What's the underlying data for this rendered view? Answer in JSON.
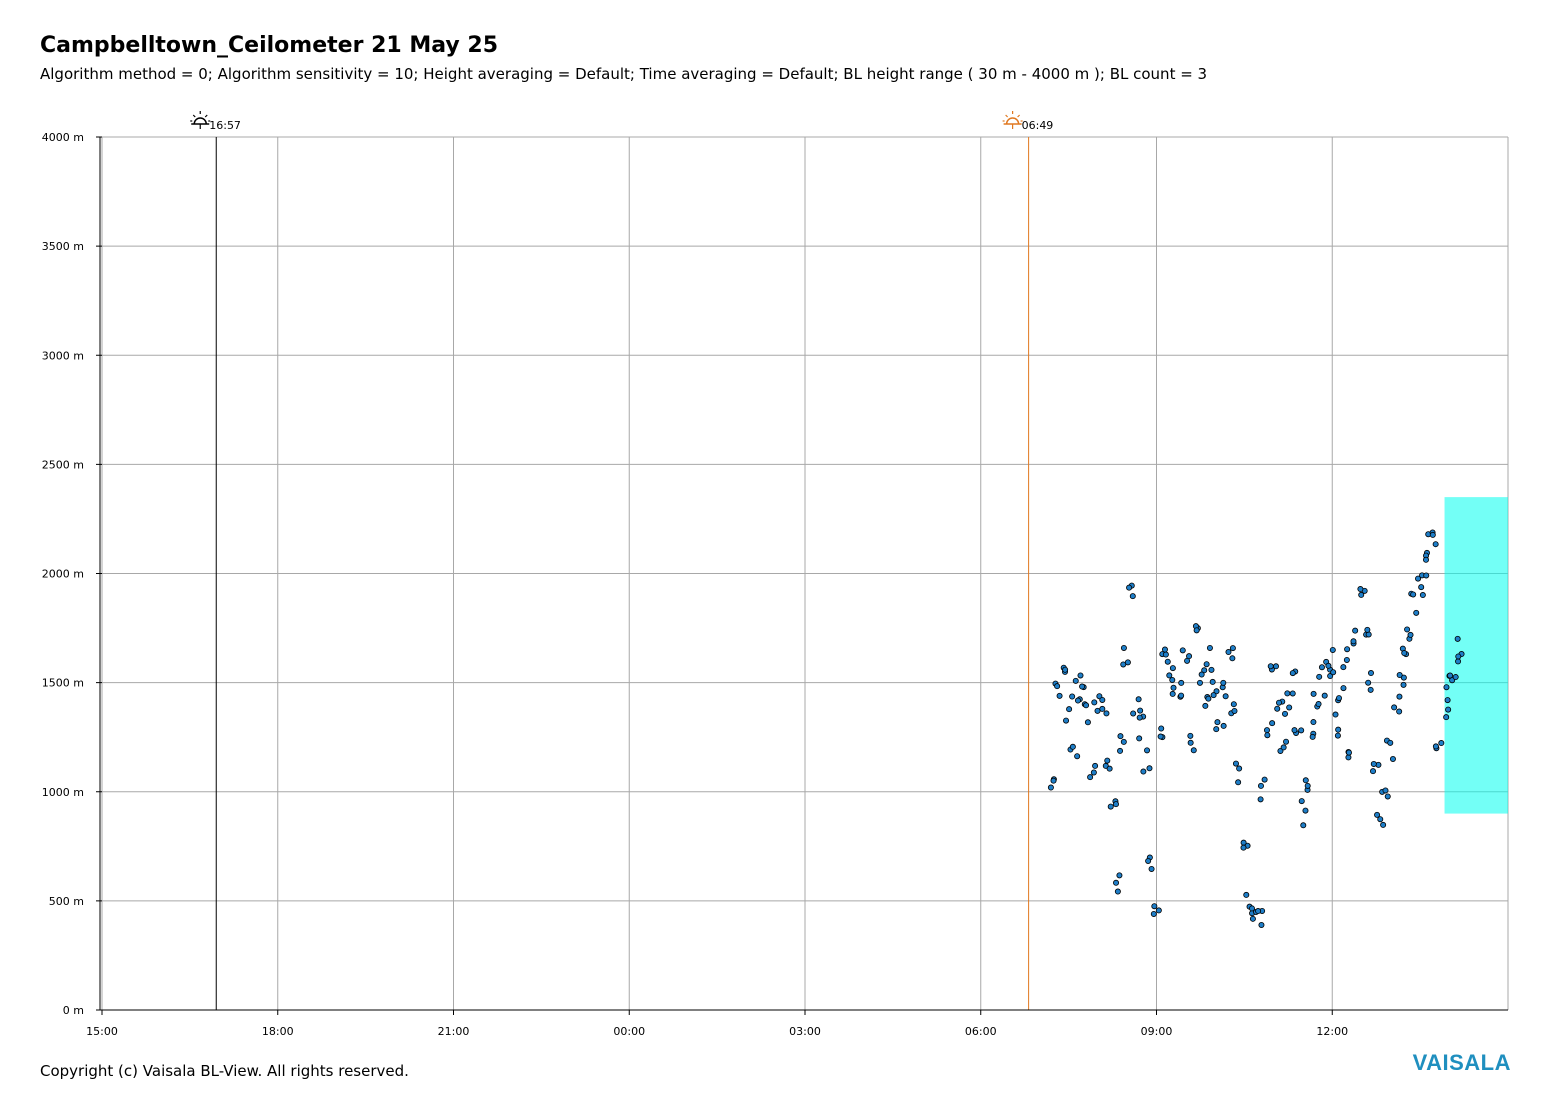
{
  "header": {
    "title": "Campbelltown_Ceilometer 21 May 25",
    "subtitle": "Algorithm method = 0; Algorithm sensitivity = 10; Height averaging = Default; Time averaging = Default; BL height range ( 30 m - 4000 m ); BL count = 3"
  },
  "footer": {
    "copyright": "Copyright (c) Vaisala BL-View. All rights reserved.",
    "brand": "VAISALA",
    "brand_color": "#1f8fbf"
  },
  "chart_data": {
    "type": "heatmap",
    "title": "Campbelltown_Ceilometer 21 May 25",
    "xlabel": "",
    "ylabel": "",
    "x_ticks": [
      "15:00",
      "18:00",
      "21:00",
      "00:00",
      "03:00",
      "06:00",
      "09:00",
      "12:00"
    ],
    "y_ticks": [
      "0 m",
      "500 m",
      "1000 m",
      "1500 m",
      "2000 m",
      "2500 m",
      "3000 m",
      "3500 m",
      "4000 m"
    ],
    "x_range_hours": [
      15.0,
      39.0
    ],
    "y_range_m": [
      0,
      4000
    ],
    "grid": true,
    "data_start_time": "07:10",
    "data_end_time": "15:00",
    "colormap": [
      "#00ffee",
      "#00e070",
      "#40ff20",
      "#ffff00",
      "#ff9900",
      "#ff0000"
    ],
    "sun_events": [
      {
        "type": "sunset",
        "label": "16:57",
        "time_hours": 16.95,
        "color": "#000000"
      },
      {
        "type": "sunrise",
        "label": "06:49",
        "time_hours": 30.817,
        "color": "#e07820"
      }
    ],
    "boundary_layer_series": {
      "name": "",
      "marker_color": "#1e7ec8",
      "points": [
        [
          "07:15",
          1050
        ],
        [
          "07:20",
          1450
        ],
        [
          "07:25",
          1600
        ],
        [
          "07:30",
          1380
        ],
        [
          "07:35",
          1200
        ],
        [
          "07:40",
          1450
        ],
        [
          "07:45",
          1500
        ],
        [
          "07:50",
          1350
        ],
        [
          "07:55",
          1100
        ],
        [
          "08:00",
          1420
        ],
        [
          "08:05",
          1380
        ],
        [
          "08:10",
          1150
        ],
        [
          "08:15",
          900
        ],
        [
          "08:20",
          600
        ],
        [
          "08:25",
          1200
        ],
        [
          "08:30",
          1600
        ],
        [
          "08:35",
          1900
        ],
        [
          "08:40",
          1400
        ],
        [
          "08:45",
          1300
        ],
        [
          "08:50",
          1150
        ],
        [
          "08:55",
          700
        ],
        [
          "09:00",
          500
        ],
        [
          "09:05",
          1300
        ],
        [
          "09:10",
          1600
        ],
        [
          "09:15",
          1550
        ],
        [
          "09:20",
          1500
        ],
        [
          "09:25",
          1450
        ],
        [
          "09:30",
          1600
        ],
        [
          "09:35",
          1200
        ],
        [
          "09:40",
          1700
        ],
        [
          "09:45",
          1550
        ],
        [
          "09:50",
          1400
        ],
        [
          "09:55",
          1600
        ],
        [
          "10:00",
          1500
        ],
        [
          "10:05",
          1300
        ],
        [
          "10:10",
          1450
        ],
        [
          "10:15",
          1650
        ],
        [
          "10:20",
          1400
        ],
        [
          "10:25",
          1100
        ],
        [
          "10:30",
          800
        ],
        [
          "10:35",
          500
        ],
        [
          "10:40",
          450
        ],
        [
          "10:45",
          400
        ],
        [
          "10:50",
          1000
        ],
        [
          "10:55",
          1300
        ],
        [
          "11:00",
          1550
        ],
        [
          "11:05",
          1400
        ],
        [
          "11:10",
          1200
        ],
        [
          "11:15",
          1400
        ],
        [
          "11:20",
          1500
        ],
        [
          "11:25",
          1300
        ],
        [
          "11:30",
          900
        ],
        [
          "11:35",
          1050
        ],
        [
          "11:40",
          1300
        ],
        [
          "11:45",
          1450
        ],
        [
          "11:50",
          1550
        ],
        [
          "11:55",
          1500
        ],
        [
          "12:00",
          1600
        ],
        [
          "12:05",
          1300
        ],
        [
          "12:10",
          1450
        ],
        [
          "12:15",
          1600
        ],
        [
          "12:20",
          1200
        ],
        [
          "12:25",
          1700
        ],
        [
          "12:30",
          1900
        ],
        [
          "12:35",
          1750
        ],
        [
          "12:40",
          1500
        ],
        [
          "12:45",
          1100
        ],
        [
          "12:50",
          900
        ],
        [
          "12:55",
          1000
        ],
        [
          "13:00",
          1200
        ],
        [
          "13:05",
          1400
        ],
        [
          "13:10",
          1500
        ],
        [
          "13:15",
          1620
        ],
        [
          "13:20",
          1750
        ],
        [
          "13:25",
          1850
        ],
        [
          "13:30",
          1950
        ],
        [
          "13:35",
          2050
        ],
        [
          "13:40",
          2120
        ],
        [
          "13:45",
          2180
        ],
        [
          "13:50",
          1200
        ],
        [
          "13:55",
          1400
        ],
        [
          "14:00",
          1500
        ],
        [
          "14:05",
          1550
        ],
        [
          "14:10",
          1650
        ]
      ]
    }
  }
}
